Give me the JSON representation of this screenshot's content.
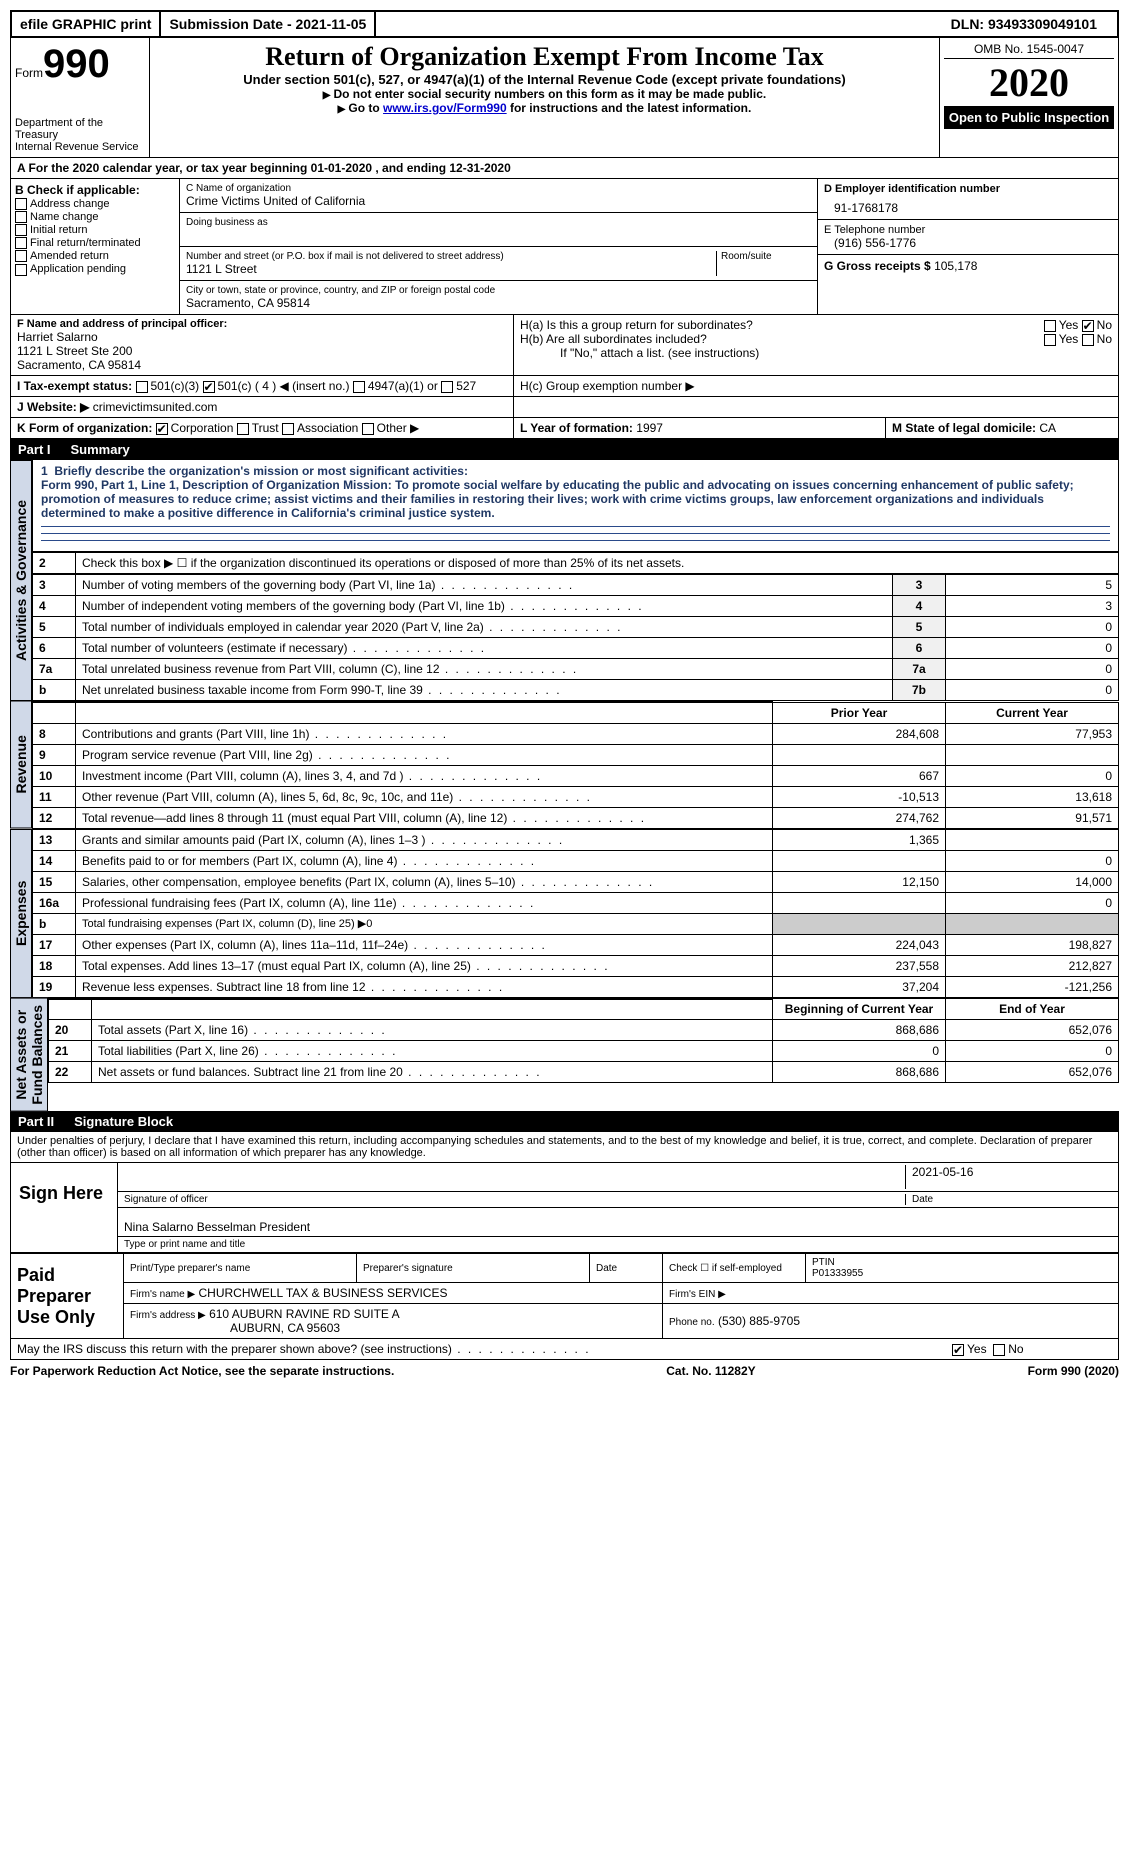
{
  "top": {
    "efile": "efile GRAPHIC print",
    "submission_label": "Submission Date - 2021-11-05",
    "dln": "DLN: 93493309049101"
  },
  "header": {
    "form_word": "Form",
    "form_num": "990",
    "title": "Return of Organization Exempt From Income Tax",
    "subtitle": "Under section 501(c), 527, or 4947(a)(1) of the Internal Revenue Code (except private foundations)",
    "note1": "Do not enter social security numbers on this form as it may be made public.",
    "note2_pre": "Go to ",
    "note2_link": "www.irs.gov/Form990",
    "note2_post": " for instructions and the latest information.",
    "dept": "Department of the Treasury\nInternal Revenue Service",
    "omb": "OMB No. 1545-0047",
    "year": "2020",
    "open": "Open to Public Inspection"
  },
  "rowA": "A For the 2020 calendar year, or tax year beginning 01-01-2020   , and ending 12-31-2020",
  "boxB": {
    "label": "B Check if applicable:",
    "items": [
      "Address change",
      "Name change",
      "Initial return",
      "Final return/terminated",
      "Amended return",
      "Application pending"
    ]
  },
  "boxC": {
    "label": "C Name of organization",
    "name": "Crime Victims United of California",
    "dba_label": "Doing business as",
    "addr_label": "Number and street (or P.O. box if mail is not delivered to street address)",
    "addr": "1121 L Street",
    "room_label": "Room/suite",
    "city_label": "City or town, state or province, country, and ZIP or foreign postal code",
    "city": "Sacramento, CA  95814"
  },
  "boxD": {
    "label": "D Employer identification number",
    "val": "91-1768178"
  },
  "boxE": {
    "label": "E Telephone number",
    "val": "(916) 556-1776"
  },
  "boxG": {
    "label": "G Gross receipts $",
    "val": "105,178"
  },
  "boxF": {
    "label": "F  Name and address of principal officer:",
    "name": "Harriet Salarno",
    "addr1": "1121 L Street Ste 200",
    "addr2": "Sacramento, CA  95814"
  },
  "boxH": {
    "ha": "H(a)  Is this a group return for subordinates?",
    "hb": "H(b)  Are all subordinates included?",
    "hb_note": "If \"No,\" attach a list. (see instructions)",
    "hc": "H(c)  Group exemption number ▶",
    "yes": "Yes",
    "no": "No"
  },
  "rowI": {
    "label": "I  Tax-exempt status:",
    "opt1": "501(c)(3)",
    "opt2": "501(c) ( 4 ) ◀ (insert no.)",
    "opt3": "4947(a)(1) or",
    "opt4": "527"
  },
  "rowJ": {
    "label": "J  Website: ▶",
    "val": "crimevictimsunited.com"
  },
  "rowK": {
    "label": "K Form of organization:",
    "opts": [
      "Corporation",
      "Trust",
      "Association",
      "Other ▶"
    ]
  },
  "rowL": {
    "label": "L Year of formation:",
    "val": "1997"
  },
  "rowM": {
    "label": "M State of legal domicile:",
    "val": "CA"
  },
  "part1": {
    "num": "Part I",
    "title": "Summary"
  },
  "summary": {
    "l1_label": "Briefly describe the organization's mission or most significant activities:",
    "l1_text": "Form 990, Part 1, Line 1, Description of Organization Mission: To promote social welfare by educating the public and advocating on issues concerning enhancement of public safety; promotion of measures to reduce crime; assist victims and their families in restoring their lives; work with crime victims groups, law enforcement organizations and individuals determined to make a positive difference in California's criminal justice system.",
    "l2": "Check this box ▶ ☐  if the organization discontinued its operations or disposed of more than 25% of its net assets.",
    "rows_a": [
      {
        "n": "3",
        "d": "Number of voting members of the governing body (Part VI, line 1a)",
        "rn": "3",
        "v": "5"
      },
      {
        "n": "4",
        "d": "Number of independent voting members of the governing body (Part VI, line 1b)",
        "rn": "4",
        "v": "3"
      },
      {
        "n": "5",
        "d": "Total number of individuals employed in calendar year 2020 (Part V, line 2a)",
        "rn": "5",
        "v": "0"
      },
      {
        "n": "6",
        "d": "Total number of volunteers (estimate if necessary)",
        "rn": "6",
        "v": "0"
      },
      {
        "n": "7a",
        "d": "Total unrelated business revenue from Part VIII, column (C), line 12",
        "rn": "7a",
        "v": "0"
      },
      {
        "n": "b",
        "d": "Net unrelated business taxable income from Form 990-T, line 39",
        "rn": "7b",
        "v": "0"
      }
    ],
    "hdr_prior": "Prior Year",
    "hdr_curr": "Current Year",
    "rows_rev": [
      {
        "n": "8",
        "d": "Contributions and grants (Part VIII, line 1h)",
        "p": "284,608",
        "c": "77,953"
      },
      {
        "n": "9",
        "d": "Program service revenue (Part VIII, line 2g)",
        "p": "",
        "c": ""
      },
      {
        "n": "10",
        "d": "Investment income (Part VIII, column (A), lines 3, 4, and 7d )",
        "p": "667",
        "c": "0"
      },
      {
        "n": "11",
        "d": "Other revenue (Part VIII, column (A), lines 5, 6d, 8c, 9c, 10c, and 11e)",
        "p": "-10,513",
        "c": "13,618"
      },
      {
        "n": "12",
        "d": "Total revenue—add lines 8 through 11 (must equal Part VIII, column (A), line 12)",
        "p": "274,762",
        "c": "91,571"
      }
    ],
    "rows_exp": [
      {
        "n": "13",
        "d": "Grants and similar amounts paid (Part IX, column (A), lines 1–3 )",
        "p": "1,365",
        "c": ""
      },
      {
        "n": "14",
        "d": "Benefits paid to or for members (Part IX, column (A), line 4)",
        "p": "",
        "c": "0"
      },
      {
        "n": "15",
        "d": "Salaries, other compensation, employee benefits (Part IX, column (A), lines 5–10)",
        "p": "12,150",
        "c": "14,000"
      },
      {
        "n": "16a",
        "d": "Professional fundraising fees (Part IX, column (A), line 11e)",
        "p": "",
        "c": "0"
      },
      {
        "n": "b",
        "d": "Total fundraising expenses (Part IX, column (D), line 25) ▶0",
        "p": "",
        "c": "",
        "span": true
      },
      {
        "n": "17",
        "d": "Other expenses (Part IX, column (A), lines 11a–11d, 11f–24e)",
        "p": "224,043",
        "c": "198,827"
      },
      {
        "n": "18",
        "d": "Total expenses. Add lines 13–17 (must equal Part IX, column (A), line 25)",
        "p": "237,558",
        "c": "212,827"
      },
      {
        "n": "19",
        "d": "Revenue less expenses. Subtract line 18 from line 12",
        "p": "37,204",
        "c": "-121,256"
      }
    ],
    "hdr_beg": "Beginning of Current Year",
    "hdr_end": "End of Year",
    "rows_net": [
      {
        "n": "20",
        "d": "Total assets (Part X, line 16)",
        "p": "868,686",
        "c": "652,076"
      },
      {
        "n": "21",
        "d": "Total liabilities (Part X, line 26)",
        "p": "0",
        "c": "0"
      },
      {
        "n": "22",
        "d": "Net assets or fund balances. Subtract line 21 from line 20",
        "p": "868,686",
        "c": "652,076"
      }
    ]
  },
  "vlabels": {
    "gov": "Activities & Governance",
    "rev": "Revenue",
    "exp": "Expenses",
    "net": "Net Assets or\nFund Balances"
  },
  "part2": {
    "num": "Part II",
    "title": "Signature Block"
  },
  "sig": {
    "penalty": "Under penalties of perjury, I declare that I have examined this return, including accompanying schedules and statements, and to the best of my knowledge and belief, it is true, correct, and complete. Declaration of preparer (other than officer) is based on all information of which preparer has any knowledge.",
    "sign_here": "Sign Here",
    "date": "2021-05-16",
    "sig_officer": "Signature of officer",
    "date_lbl": "Date",
    "officer": "Nina Salarno Besselman  President",
    "type_name": "Type or print name and title",
    "paid": "Paid Preparer Use Only",
    "p_name_lbl": "Print/Type preparer's name",
    "p_sig_lbl": "Preparer's signature",
    "p_date_lbl": "Date",
    "p_check": "Check ☐ if self-employed",
    "ptin_lbl": "PTIN",
    "ptin": "P01333955",
    "firm_name_lbl": "Firm's name    ▶",
    "firm_name": "CHURCHWELL TAX & BUSINESS SERVICES",
    "firm_ein_lbl": "Firm's EIN ▶",
    "firm_addr_lbl": "Firm's address ▶",
    "firm_addr1": "610 AUBURN RAVINE RD SUITE A",
    "firm_addr2": "AUBURN, CA  95603",
    "phone_lbl": "Phone no.",
    "phone": "(530) 885-9705",
    "discuss": "May the IRS discuss this return with the preparer shown above? (see instructions)",
    "yes": "Yes",
    "no": "No"
  },
  "footer": {
    "left": "For Paperwork Reduction Act Notice, see the separate instructions.",
    "mid": "Cat. No. 11282Y",
    "right": "Form 990 (2020)"
  }
}
